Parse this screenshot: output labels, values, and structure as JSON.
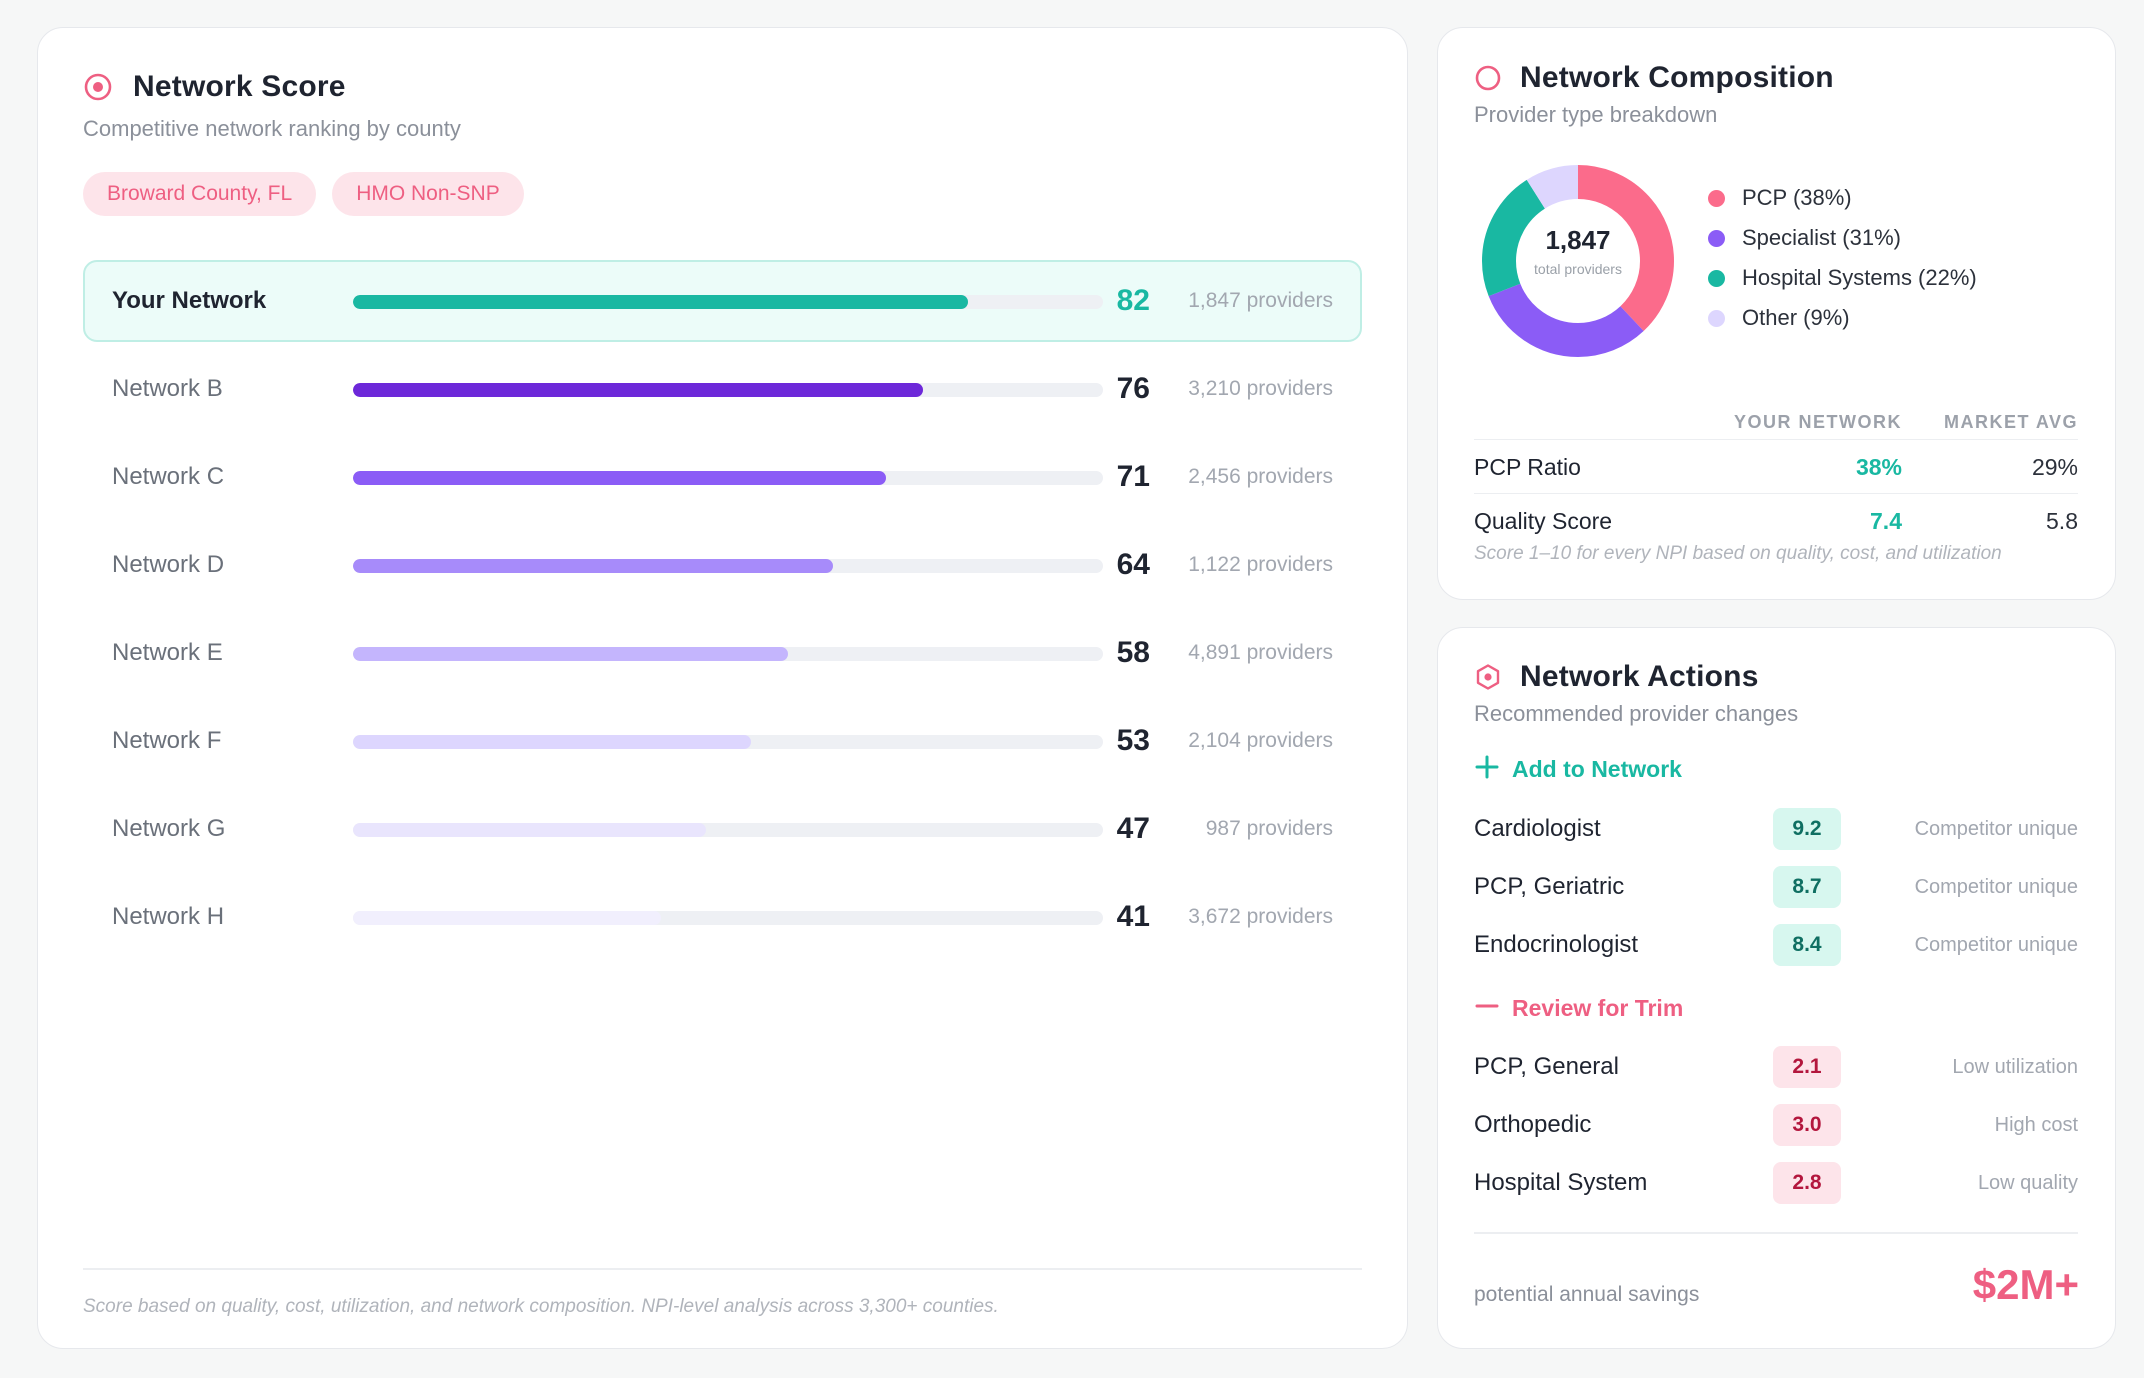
{
  "network_score": {
    "title": "Network Score",
    "subtitle": "Competitive network ranking by county",
    "tags": [
      "Broward County, FL",
      "HMO Non-SNP"
    ],
    "rows": [
      {
        "name": "Your Network",
        "score": 82,
        "providers": "1,847 providers",
        "color": "#19b8a2",
        "highlight": true
      },
      {
        "name": "Network B",
        "score": 76,
        "providers": "3,210 providers",
        "color": "#6d28d9",
        "highlight": false
      },
      {
        "name": "Network C",
        "score": 71,
        "providers": "2,456 providers",
        "color": "#8b5cf6",
        "highlight": false
      },
      {
        "name": "Network D",
        "score": 64,
        "providers": "1,122 providers",
        "color": "#a78bfa",
        "highlight": false
      },
      {
        "name": "Network E",
        "score": 58,
        "providers": "4,891 providers",
        "color": "#c4b5fd",
        "highlight": false
      },
      {
        "name": "Network F",
        "score": 53,
        "providers": "2,104 providers",
        "color": "#ddd6fe",
        "highlight": false
      },
      {
        "name": "Network G",
        "score": 47,
        "providers": "987 providers",
        "color": "#e9e5fd",
        "highlight": false
      },
      {
        "name": "Network H",
        "score": 41,
        "providers": "3,672 providers",
        "color": "#f1effd",
        "highlight": false
      }
    ],
    "footnote": "Score based on quality, cost, utilization, and network composition. NPI-level analysis across 3,300+ counties."
  },
  "composition": {
    "title": "Network Composition",
    "subtitle": "Provider type breakdown",
    "total": "1,847",
    "total_caption": "total providers",
    "segments": [
      {
        "label": "PCP (38%)",
        "pct": 38,
        "color": "#fb6b8b"
      },
      {
        "label": "Specialist (31%)",
        "pct": 31,
        "color": "#8b5cf6"
      },
      {
        "label": "Hospital Systems (22%)",
        "pct": 22,
        "color": "#19b8a2"
      },
      {
        "label": "Other (9%)",
        "pct": 9,
        "color": "#ddd6fe"
      }
    ],
    "table": {
      "col_yours": "YOUR NETWORK",
      "col_avg": "MARKET AVG",
      "rows": [
        {
          "label": "PCP Ratio",
          "yours": "38%",
          "avg": "29%"
        },
        {
          "label": "Quality Score",
          "yours": "7.4",
          "avg": "5.8"
        }
      ]
    },
    "note": "Score 1–10 for every NPI based on quality, cost, and utilization"
  },
  "actions": {
    "title": "Network Actions",
    "subtitle": "Recommended provider changes",
    "add_label": "Add to Network",
    "add_items": [
      {
        "name": "Cardiologist",
        "score": "9.2",
        "reason": "Competitor unique"
      },
      {
        "name": "PCP, Geriatric",
        "score": "8.7",
        "reason": "Competitor unique"
      },
      {
        "name": "Endocrinologist",
        "score": "8.4",
        "reason": "Competitor unique"
      }
    ],
    "trim_label": "Review for Trim",
    "trim_items": [
      {
        "name": "PCP, General",
        "score": "2.1",
        "reason": "Low utilization"
      },
      {
        "name": "Orthopedic",
        "score": "3.0",
        "reason": "High cost"
      },
      {
        "name": "Hospital System",
        "score": "2.8",
        "reason": "Low quality"
      }
    ],
    "savings_label": "potential annual savings",
    "savings_value": "$2M+"
  },
  "colors": {
    "accent_pink": "#ee5f82",
    "accent_teal": "#19b8a2",
    "track": "#eef0f4"
  }
}
